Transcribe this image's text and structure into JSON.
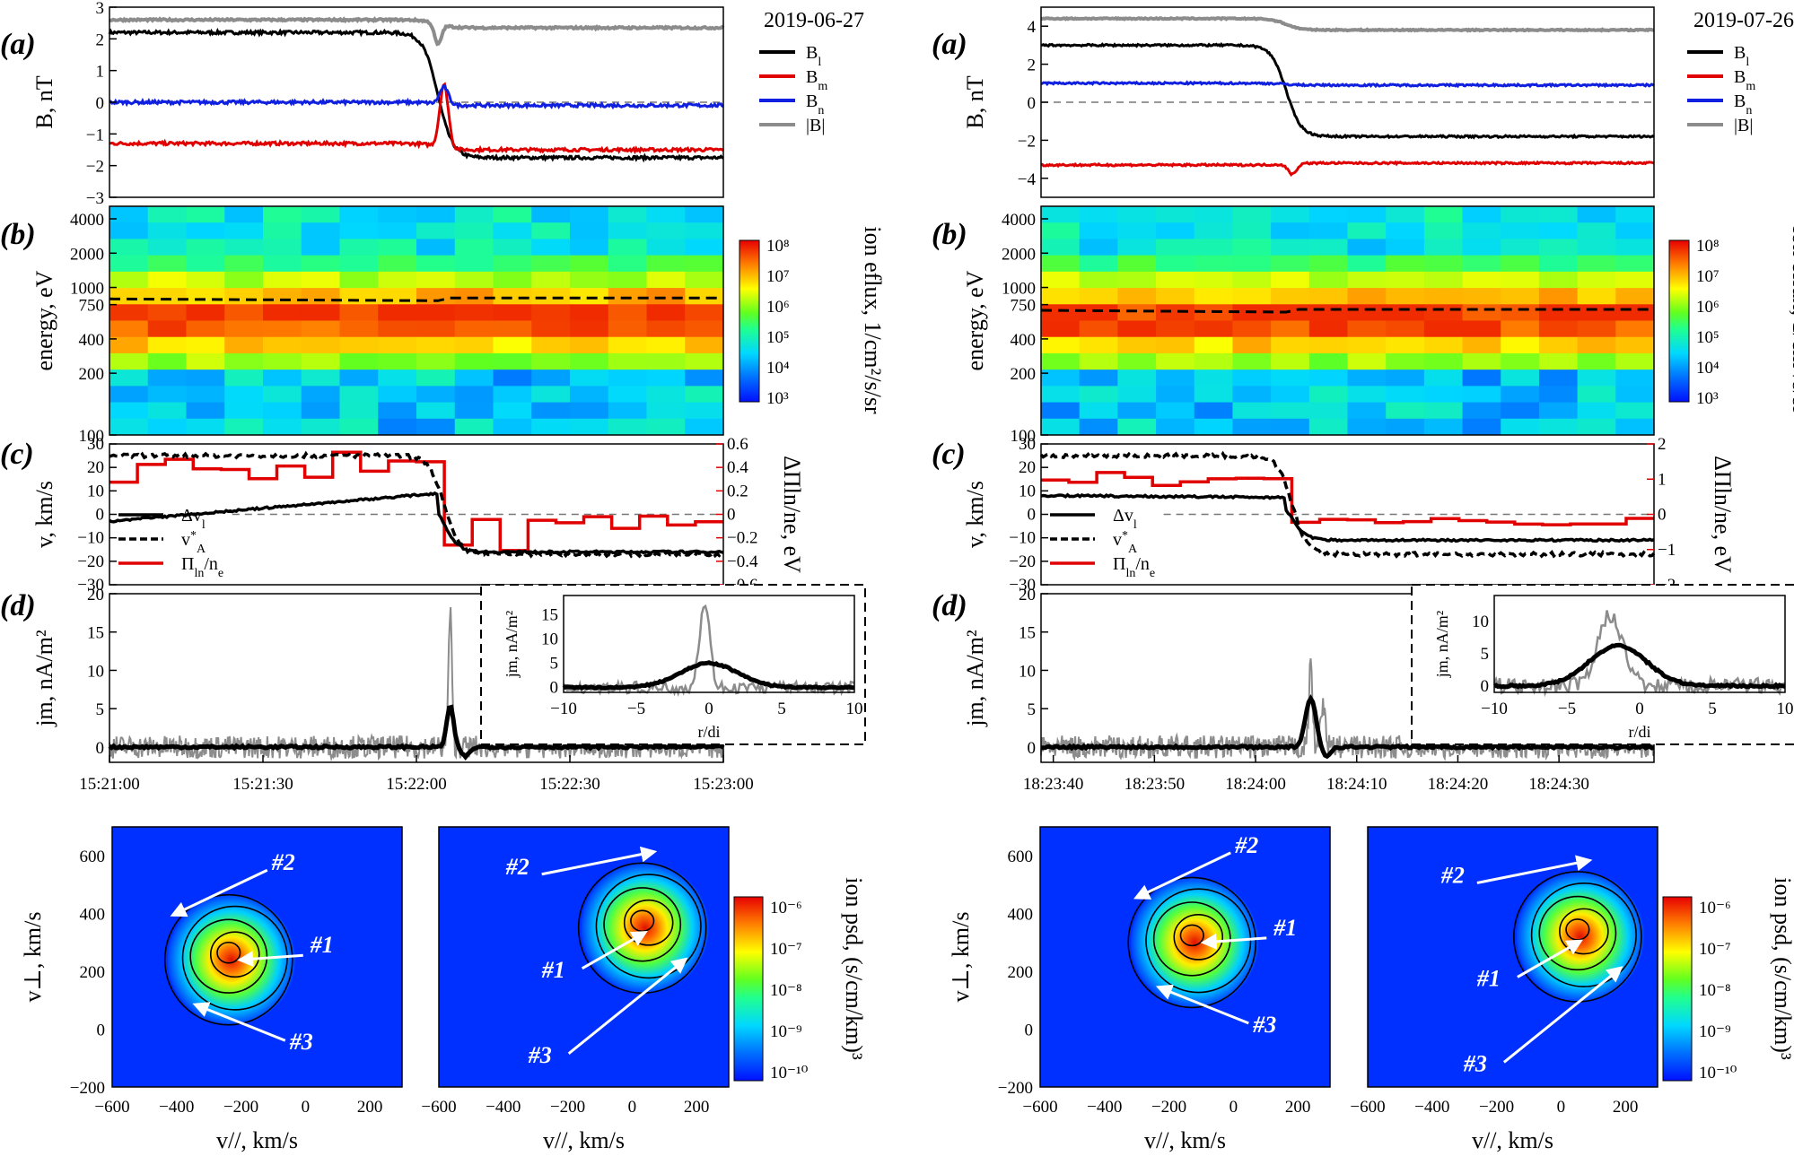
{
  "colors": {
    "bl": "#000000",
    "bm": "#e00000",
    "bn": "#1020e0",
    "btot": "#8c8c8c",
    "pi": "#e00000",
    "jraw": "#8c8c8c",
    "jsmooth": "#000000",
    "zero": "#777777",
    "arrow": "#ffffff"
  },
  "colorbar_ticks_efux": [
    "10⁸",
    "10⁷",
    "10⁶",
    "10⁵",
    "10⁴",
    "10³"
  ],
  "colorbar_ticks_psd": [
    "10⁻⁶",
    "10⁻⁷",
    "10⁻⁸",
    "10⁻⁹",
    "10⁻¹⁰"
  ],
  "labels": {
    "b_ylabel": "B, nT",
    "energy_ylabel": "energy, eV",
    "efux_label": "ion eflux, 1/cm²/s/sr",
    "v_ylabel": "v, km/s",
    "pi_ylabel": "ΔΠln/ne, eV",
    "j_ylabel": "jm, nA/m²",
    "inset_ylabel": "jm, nA/m²",
    "inset_xlabel": "r/di",
    "vperp_label": "v⊥, km/s",
    "vpar_label": "v//, km/s",
    "psd_label": "ion psd, (s/cm/km)³"
  },
  "chart_data": [
    {
      "type": "line",
      "title": "2019-06-27",
      "panel_labels": [
        "(a)",
        "(b)",
        "(c)",
        "(d)"
      ],
      "panel_a": {
        "ylim": [
          -3,
          3
        ],
        "yticks": [
          "3",
          "2",
          "1",
          "0",
          "−1",
          "−2",
          "−3"
        ],
        "legend": [
          "Bl",
          "Bm",
          "Bn",
          "|B|"
        ],
        "series": [
          {
            "name": "Bl",
            "before": 2.2,
            "after": -1.75
          },
          {
            "name": "Bm",
            "before": -1.3,
            "after": -1.5,
            "peak": 0.6
          },
          {
            "name": "Bn",
            "before": 0.0,
            "after": -0.1,
            "peak": 0.5
          },
          {
            "name": "|B|",
            "before": 2.6,
            "after": 2.35,
            "dip": 1.7
          }
        ]
      },
      "panel_b": {
        "yticks": [
          "4000",
          "2000",
          "1000",
          "750",
          "400",
          "200",
          "100"
        ],
        "dashed_energy": 600
      },
      "panel_c": {
        "ylim": [
          -30,
          30
        ],
        "yticks": [
          "30",
          "20",
          "10",
          "0",
          "−10",
          "−20",
          "−30"
        ],
        "y2ticks": [
          "0.6",
          "0.4",
          "0.2",
          "0",
          "−0.2",
          "−0.4",
          "−0.6"
        ],
        "legend": [
          "Δvl",
          "v*A",
          "Πln/ne"
        ]
      },
      "panel_d": {
        "ylim": [
          -2,
          20
        ],
        "yticks": [
          "20",
          "15",
          "10",
          "5",
          "0"
        ],
        "xticks": [
          "15:21:00",
          "15:21:30",
          "15:22:00",
          "15:22:30",
          "15:23:00"
        ],
        "peak_raw": 17.5,
        "peak_smooth": 5.3
      },
      "inset": {
        "xticks": [
          "−10",
          "−5",
          "0",
          "5",
          "10"
        ],
        "yticks": [
          "15",
          "10",
          "5",
          "0"
        ],
        "peak_raw": 17.5,
        "peak_smooth": 5
      },
      "vdf": {
        "xticks": [
          "−600",
          "−400",
          "−200",
          "0",
          "200"
        ],
        "yticks": [
          "600",
          "400",
          "200",
          "0",
          "−200"
        ],
        "left_center": [
          -230,
          240
        ],
        "right_center": [
          40,
          350
        ],
        "populations": [
          "#1",
          "#2",
          "#3"
        ]
      }
    },
    {
      "type": "line",
      "title": "2019-07-26",
      "panel_labels": [
        "(a)",
        "(b)",
        "(c)",
        "(d)"
      ],
      "panel_a": {
        "ylim": [
          -5,
          5
        ],
        "yticks": [
          "4",
          "2",
          "0",
          "−2",
          "−4"
        ],
        "legend": [
          "Bl",
          "Bm",
          "Bn",
          "|B|"
        ],
        "series": [
          {
            "name": "Bl",
            "before": 3.0,
            "after": -1.8
          },
          {
            "name": "Bm",
            "before": -3.3,
            "after": -3.2,
            "peak": -3.8
          },
          {
            "name": "Bn",
            "before": 1.0,
            "after": 0.9
          },
          {
            "name": "|B|",
            "before": 4.4,
            "after": 3.8
          }
        ]
      },
      "panel_b": {
        "yticks": [
          "4000",
          "2000",
          "1000",
          "750",
          "400",
          "200",
          "100"
        ],
        "dashed_energy": 550
      },
      "panel_c": {
        "ylim": [
          -30,
          30
        ],
        "yticks": [
          "30",
          "20",
          "10",
          "0",
          "−10",
          "−20",
          "−30"
        ],
        "y2ticks": [
          "2",
          "1",
          "0",
          "−1",
          "−2"
        ],
        "legend": [
          "Δvl",
          "v*A",
          "Πln/ne"
        ]
      },
      "panel_d": {
        "ylim": [
          -2,
          20
        ],
        "yticks": [
          "20",
          "15",
          "10",
          "5",
          "0"
        ],
        "xticks": [
          "18:23:40",
          "18:23:50",
          "18:24:00",
          "18:24:10",
          "18:24:20",
          "18:24:30"
        ],
        "peak_raw": 11,
        "peak_smooth": 6.3
      },
      "inset": {
        "xticks": [
          "−10",
          "−5",
          "0",
          "5",
          "10"
        ],
        "yticks": [
          "10",
          "5",
          "0"
        ],
        "peak_raw": 11,
        "peak_smooth": 6.2
      },
      "vdf": {
        "xticks": [
          "−600",
          "−400",
          "−200",
          "0",
          "200"
        ],
        "yticks": [
          "600",
          "400",
          "200",
          "0",
          "−200"
        ],
        "left_center": [
          -120,
          300
        ],
        "right_center": [
          60,
          320
        ],
        "populations": [
          "#1",
          "#2",
          "#3"
        ]
      }
    }
  ]
}
